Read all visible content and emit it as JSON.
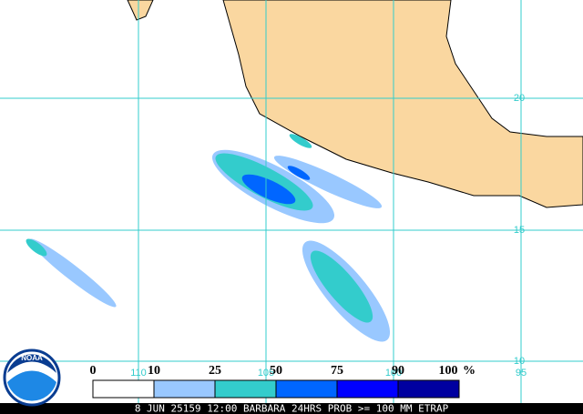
{
  "map": {
    "lat_labels": [
      "20",
      "15",
      "10"
    ],
    "lon_labels": [
      "110",
      "105",
      "100",
      "95"
    ]
  },
  "legend": {
    "labels": [
      "0",
      "10",
      "25",
      "50",
      "75",
      "90",
      "100"
    ],
    "unit": "%",
    "colors": [
      "#ffffff",
      "#99c8ff",
      "#33cccc",
      "#0066ff",
      "#0000ff",
      "#0000a0"
    ]
  },
  "logo": "NOAA",
  "caption": "8 JUN 25159 12:00 BARBARA 24HRS PROB >= 100 MM ETRAP"
}
